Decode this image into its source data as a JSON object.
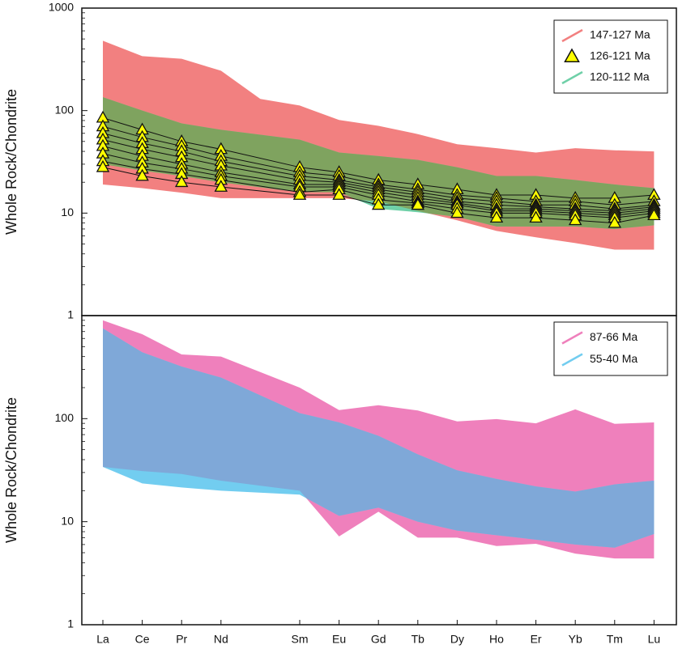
{
  "chart_data": [
    {
      "type": "range",
      "y_label": "Whole Rock/Chondrite",
      "log_y": true,
      "ylim": [
        1,
        1000
      ],
      "yticks": [
        1,
        10,
        100,
        1000
      ],
      "legend": "upper right",
      "overlap_color": "#7fa35f",
      "series": [
        {
          "name": "147-127 Ma",
          "color": "#f28080",
          "upper": [
            480,
            340,
            320,
            245,
            130,
            112,
            81,
            71,
            59,
            47,
            43,
            39,
            43,
            41,
            40
          ],
          "lower": [
            19,
            17.5,
            15.8,
            14,
            14,
            14,
            14,
            13,
            10.5,
            8.5,
            6.7,
            5.8,
            5.1,
            4.4,
            4.4
          ]
        },
        {
          "name": "126-121 Ma",
          "color": "#ffff00",
          "marker": "triangle",
          "samples": [
            [
              85,
              65,
              50,
              42,
              null,
              28,
              25,
              21,
              19,
              17,
              15,
              15,
              14,
              14,
              15
            ],
            [
              70,
              55,
              45,
              36,
              null,
              25,
              23,
              19,
              17,
              15,
              14,
              13,
              13,
              12,
              13
            ],
            [
              60,
              48,
              40,
              32,
              null,
              23,
              21,
              18,
              16,
              14,
              13,
              12,
              12,
              11,
              12
            ],
            [
              52,
              42,
              35,
              29,
              null,
              21,
              20,
              17,
              15,
              13,
              12,
              11.5,
              11,
              10.5,
              11.5
            ],
            [
              45,
              36,
              30,
              25,
              null,
              19,
              19,
              16,
              14,
              12.5,
              11,
              11,
              10.5,
              10,
              11
            ],
            [
              38,
              31,
              27,
              23,
              null,
              18,
              18,
              15,
              13,
              12,
              10.5,
              10.5,
              10,
              9.5,
              10.5
            ],
            [
              32,
              27,
              24,
              21,
              null,
              16,
              17,
              13.5,
              12.5,
              11,
              10,
              10,
              9.5,
              9,
              10
            ],
            [
              28,
              23,
              20,
              18,
              null,
              15,
              15,
              12,
              12,
              10,
              9,
              9,
              8.5,
              8,
              9.5
            ]
          ]
        },
        {
          "name": "120-112 Ma",
          "color": "#6fd0a8",
          "upper": [
            135,
            100,
            75,
            65,
            null,
            52,
            39,
            36,
            33,
            28,
            23,
            23,
            21,
            19,
            17.5
          ],
          "lower": [
            30,
            26,
            23,
            20,
            null,
            16,
            16,
            11,
            10.2,
            9.2,
            7.4,
            7.4,
            7.4,
            7,
            7.6
          ]
        }
      ]
    },
    {
      "type": "range",
      "y_label": "Whole Rock/Chondrite",
      "log_y": true,
      "ylim": [
        1,
        1000
      ],
      "yticks": [
        1,
        10,
        100
      ],
      "legend": "upper right",
      "overlap_color": "#7fa8d8",
      "categories": [
        "La",
        "Ce",
        "Pr",
        "Nd",
        null,
        "Sm",
        "Eu",
        "Gd",
        "Tb",
        "Dy",
        "Ho",
        "Er",
        "Yb",
        "Tm",
        "Lu"
      ],
      "series": [
        {
          "name": "87-66 Ma",
          "color": "#ef80bc",
          "upper": [
            900,
            660,
            420,
            400,
            null,
            200,
            121,
            135,
            120,
            94,
            99,
            90,
            123,
            89,
            92
          ],
          "lower": [
            34,
            31,
            29,
            25,
            null,
            20,
            7.2,
            12.5,
            7,
            7,
            5.8,
            6.1,
            4.9,
            4.4,
            4.4
          ]
        },
        {
          "name": "55-40 Ma",
          "color": "#72cdf0",
          "upper": [
            750,
            440,
            320,
            250,
            null,
            113,
            92,
            68,
            45,
            31.5,
            26,
            22,
            19.6,
            23,
            25
          ],
          "lower": [
            34,
            23.5,
            21.5,
            20,
            null,
            18.3,
            11.4,
            13.7,
            10,
            8.2,
            7.4,
            6.7,
            6,
            5.6,
            7.6
          ]
        }
      ]
    }
  ]
}
